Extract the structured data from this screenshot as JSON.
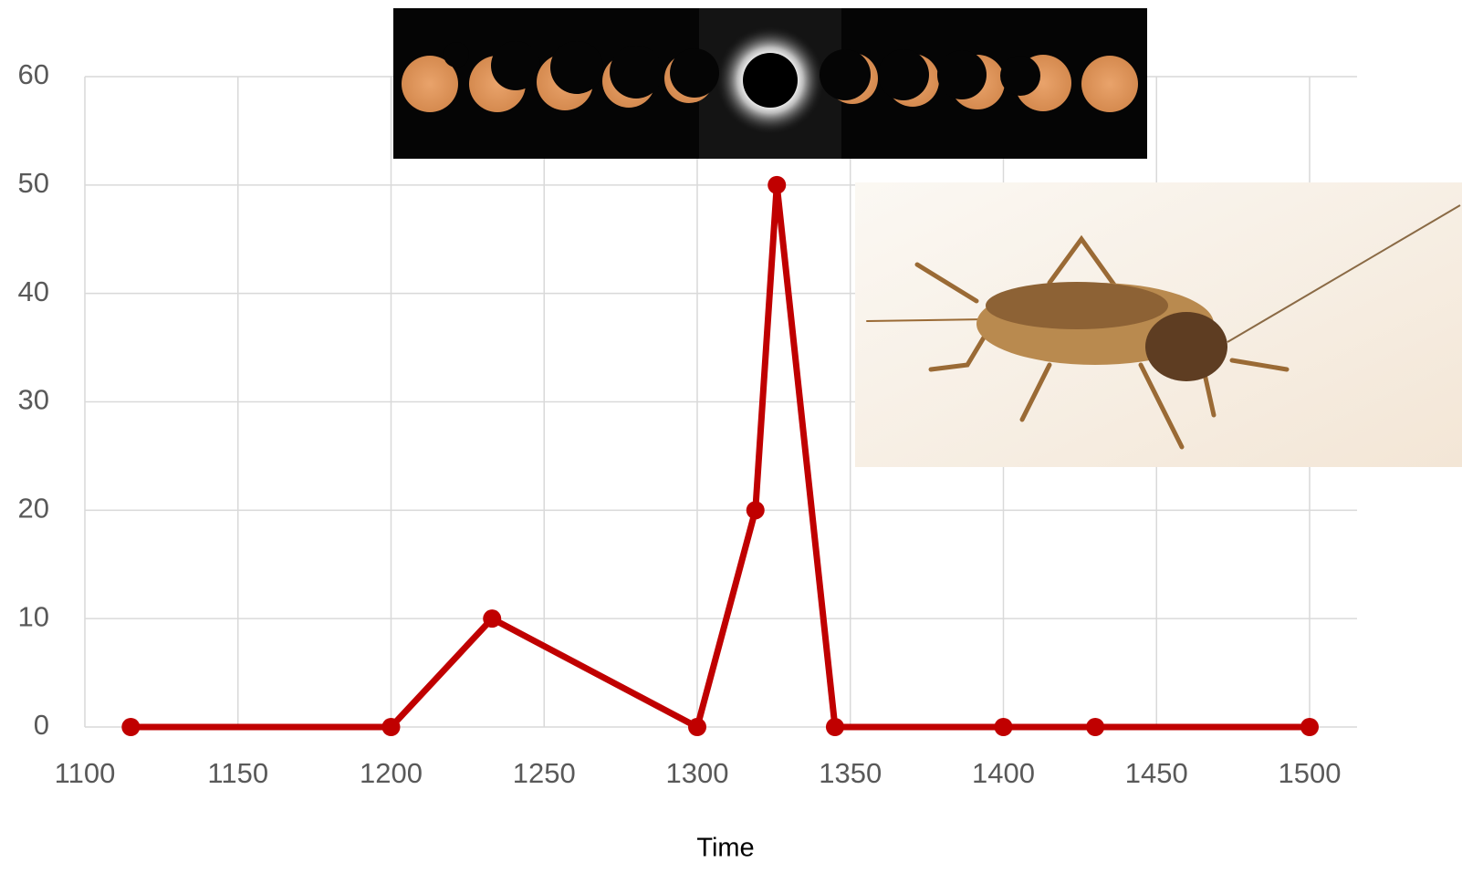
{
  "chart_data": {
    "type": "line",
    "x_label": "Time",
    "x": [
      1115,
      1200,
      1233,
      1300,
      1319,
      1326,
      1345,
      1400,
      1430,
      1500
    ],
    "series": [
      {
        "color": "#c00000",
        "values": [
          0,
          0,
          10,
          0,
          20,
          50,
          0,
          0,
          0,
          0
        ]
      }
    ],
    "xlim": [
      1100,
      1500
    ],
    "xticks": [
      1100,
      1150,
      1200,
      1250,
      1300,
      1350,
      1400,
      1450,
      1500
    ],
    "ylim": [
      0,
      60
    ],
    "yticks": [
      0,
      10,
      20,
      30,
      40,
      50,
      60
    ],
    "grid": true
  }
}
